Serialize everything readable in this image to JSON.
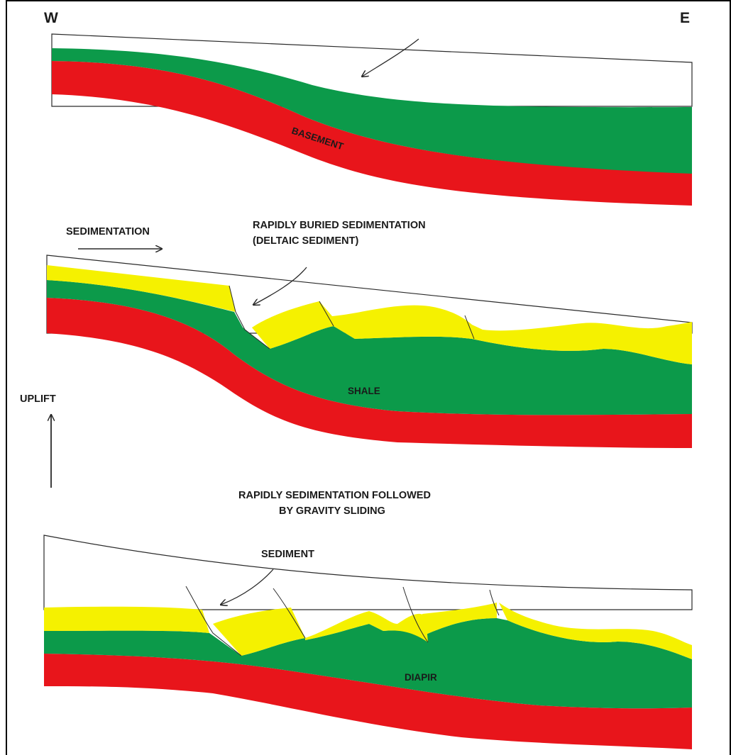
{
  "colors": {
    "basement": "#e8151b",
    "shale": "#0c9a4a",
    "sediment": "#f5f100",
    "line": "#2a2a2a",
    "background": "#ffffff"
  },
  "labels": {
    "west": "W",
    "east": "E",
    "basement": "BASEMENT",
    "sedimentation": "SEDIMENTATION",
    "rapid_buried_line1": "RAPIDLY BURIED SEDIMENTATION",
    "rapid_buried_line2": "(DELTAIC SEDIMENT)",
    "shale": "SHALE",
    "uplift": "UPLIFT",
    "gravity_line1": "RAPIDLY SEDIMENTATION FOLLOWED",
    "gravity_line2": "BY GRAVITY SLIDING",
    "sediment": "SEDIMENT",
    "diapir": "DIAPIR"
  }
}
